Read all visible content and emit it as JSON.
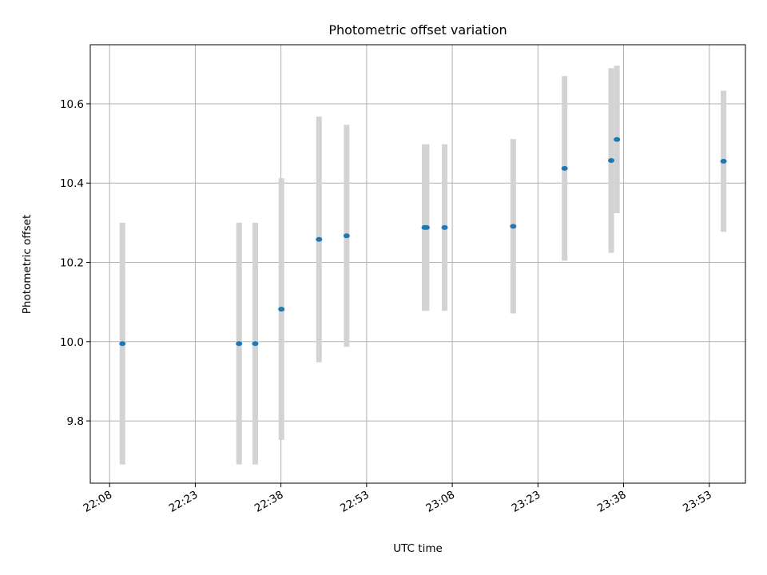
{
  "chart_data": {
    "type": "scatter",
    "title": "Photometric offset variation",
    "xlabel": "UTC time",
    "ylabel": "Photometric offset",
    "x_tick_labels": [
      "22:08",
      "22:23",
      "22:38",
      "22:53",
      "23:08",
      "23:23",
      "23:38",
      "23:53"
    ],
    "y_tick_values": [
      9.8,
      10.0,
      10.2,
      10.4,
      10.6
    ],
    "y_tick_labels": [
      "9.8",
      "10.0",
      "10.2",
      "10.4",
      "10.6"
    ],
    "xlim": [
      "22:04:37",
      "23:59:20"
    ],
    "ylim": [
      9.643,
      10.749
    ],
    "grid": true,
    "point_color": "#1f77b4",
    "errorbar_color": "#d3d3d3",
    "points": [
      {
        "x": "22:10:15",
        "y": 9.995,
        "yerr": 0.305
      },
      {
        "x": "22:30:40",
        "y": 9.995,
        "yerr": 0.305
      },
      {
        "x": "22:33:30",
        "y": 9.995,
        "yerr": 0.305
      },
      {
        "x": "22:38:05",
        "y": 10.082,
        "yerr": 0.33
      },
      {
        "x": "22:44:40",
        "y": 10.258,
        "yerr": 0.31
      },
      {
        "x": "22:49:30",
        "y": 10.267,
        "yerr": 0.28
      },
      {
        "x": "23:03:10",
        "y": 10.288,
        "yerr": 0.21
      },
      {
        "x": "23:03:30",
        "y": 10.288,
        "yerr": 0.21
      },
      {
        "x": "23:06:40",
        "y": 10.288,
        "yerr": 0.21
      },
      {
        "x": "23:18:40",
        "y": 10.291,
        "yerr": 0.22
      },
      {
        "x": "23:27:40",
        "y": 10.437,
        "yerr": 0.233
      },
      {
        "x": "23:35:50",
        "y": 10.457,
        "yerr": 0.233
      },
      {
        "x": "23:36:50",
        "y": 10.51,
        "yerr": 0.186
      },
      {
        "x": "23:55:30",
        "y": 10.455,
        "yerr": 0.178
      }
    ]
  }
}
